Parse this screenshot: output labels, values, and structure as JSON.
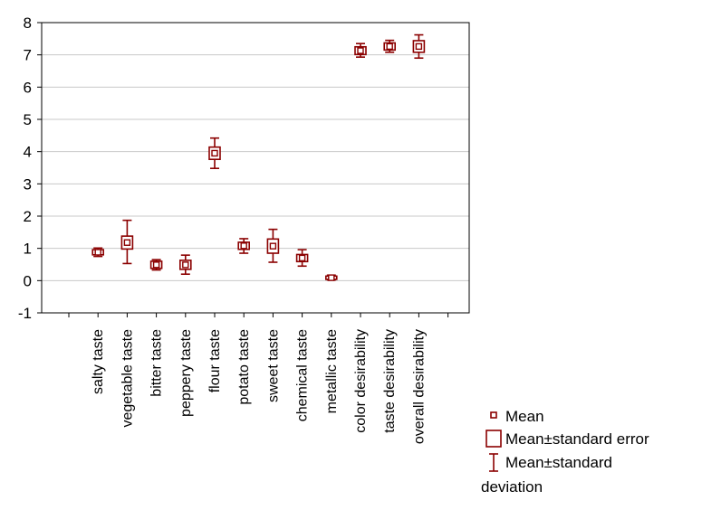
{
  "chart_data": {
    "type": "box",
    "title": "",
    "xlabel": "",
    "ylabel": "",
    "ylim": [
      -1,
      8
    ],
    "yticks": [
      -1,
      0,
      1,
      2,
      3,
      4,
      5,
      6,
      7,
      8
    ],
    "grid": "horizontal",
    "legend_placement": "bottom-right",
    "colors": {
      "series": "#8b0000",
      "grid": "#c8c8c8",
      "axis": "#000000"
    },
    "categories": [
      "salty taste",
      "vegetable taste",
      "bitter taste",
      "peppery taste",
      "flour taste",
      "potato taste",
      "sweet taste",
      "chemical taste",
      "metallic taste",
      "color desirability",
      "taste desirability",
      "overall  desirability"
    ],
    "mean": [
      0.88,
      1.18,
      0.49,
      0.49,
      3.95,
      1.08,
      1.07,
      0.7,
      0.09,
      7.13,
      7.26,
      7.26
    ],
    "se_low": [
      0.8,
      0.98,
      0.38,
      0.35,
      3.76,
      0.97,
      0.85,
      0.59,
      0.04,
      7.01,
      7.15,
      7.08
    ],
    "se_high": [
      0.96,
      1.38,
      0.6,
      0.63,
      4.14,
      1.19,
      1.29,
      0.81,
      0.14,
      7.25,
      7.37,
      7.44
    ],
    "sd_low": [
      0.75,
      0.53,
      0.33,
      0.2,
      3.48,
      0.85,
      0.57,
      0.45,
      0.02,
      6.93,
      7.08,
      6.9
    ],
    "sd_high": [
      1.01,
      1.87,
      0.65,
      0.79,
      4.42,
      1.3,
      1.59,
      0.96,
      0.17,
      7.35,
      7.45,
      7.62
    ],
    "legend": {
      "mean": "Mean",
      "se": "Mean±standard error",
      "sd_line1": "Mean±standard",
      "sd_line2": "deviation"
    }
  }
}
